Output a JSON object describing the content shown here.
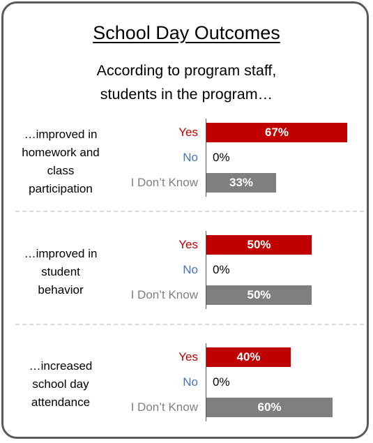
{
  "title": "School Day Outcomes",
  "subtitle_line1": "According to program staff,",
  "subtitle_line2": "students in the program…",
  "colors": {
    "yes": "#c00000",
    "no": "#4472c4",
    "dont_know": "#7f7f7f",
    "border": "#595959"
  },
  "chart_data": {
    "type": "bar",
    "orientation": "horizontal",
    "categories": [
      "Yes",
      "No",
      "I Don’t Know"
    ],
    "xlim": [
      0,
      100
    ],
    "groups": [
      {
        "label_lines": [
          "…improved in",
          "homework and",
          "class",
          "participation"
        ],
        "values": [
          67,
          0,
          33
        ],
        "value_labels": [
          "67%",
          "0%",
          "33%"
        ]
      },
      {
        "label_lines": [
          "…improved in",
          "student",
          "behavior"
        ],
        "values": [
          50,
          0,
          50
        ],
        "value_labels": [
          "50%",
          "0%",
          "50%"
        ]
      },
      {
        "label_lines": [
          "…increased",
          "school day",
          "attendance"
        ],
        "values": [
          40,
          0,
          60
        ],
        "value_labels": [
          "40%",
          "0%",
          "60%"
        ]
      }
    ]
  }
}
